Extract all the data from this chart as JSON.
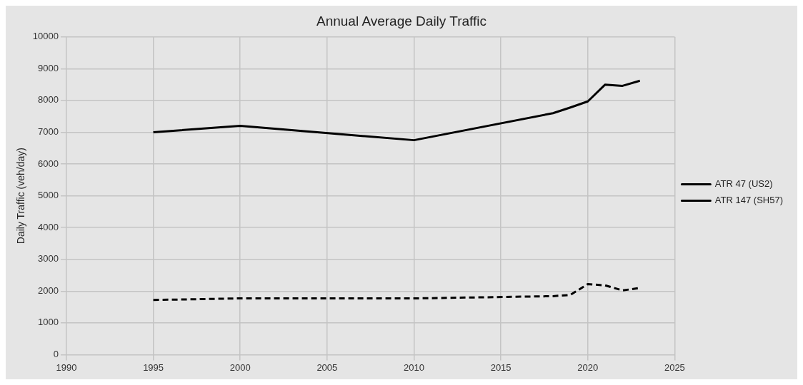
{
  "chart_data": {
    "type": "line",
    "title": "Annual Average Daily Traffic",
    "ylabel": "Daily Traffic (veh/day)",
    "x": [
      1995,
      2000,
      2010,
      2018,
      2019,
      2020,
      2021,
      2022,
      2023
    ],
    "series": [
      {
        "name": "ATR 47 (US2)",
        "color": "#000000",
        "line_style": "solid",
        "values": [
          7000,
          7200,
          6750,
          7600,
          7780,
          7970,
          8500,
          8460,
          8620
        ]
      },
      {
        "name": "ATR 147 (SH57)",
        "color": "#000000",
        "line_style": "dashed",
        "values": [
          1720,
          1770,
          1770,
          1840,
          1880,
          2220,
          2180,
          2020,
          2100
        ]
      }
    ],
    "xlim": [
      1990,
      2025
    ],
    "xticks": [
      1990,
      1995,
      2000,
      2005,
      2010,
      2015,
      2020,
      2025
    ],
    "ylim": [
      0,
      10000
    ],
    "yticks": [
      0,
      1000,
      2000,
      3000,
      4000,
      5000,
      6000,
      7000,
      8000,
      9000,
      10000
    ],
    "grid": true,
    "legend": "right",
    "marker": "none"
  }
}
